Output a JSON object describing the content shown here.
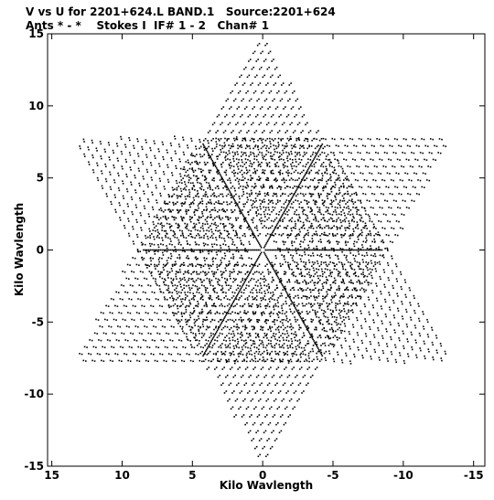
{
  "header": {
    "line1": "V vs U for 2201+624.L BAND.1   Source:2201+624",
    "line2": "Ants * - *    Stokes I  IF# 1 - 2   Chan# 1"
  },
  "chart_data": {
    "type": "scatter",
    "title": "V vs U for 2201+624.L BAND.1   Source:2201+624",
    "subtitle": "Ants * - *    Stokes I  IF# 1 - 2   Chan# 1",
    "xlabel": "Kilo Wavlength",
    "ylabel": "Kilo Wavlength",
    "xlim": [
      15.3,
      -15.8
    ],
    "ylim": [
      -15,
      15
    ],
    "x_ticks": [
      15,
      10,
      5,
      0,
      -5,
      -10,
      -15
    ],
    "x_tick_labels": [
      "15",
      "10",
      "5",
      "0",
      "-5",
      "-10",
      "-15"
    ],
    "y_ticks": [
      15,
      10,
      5,
      0,
      -5,
      -10,
      -15
    ],
    "y_tick_labels": [
      "15",
      "10",
      "5",
      "0",
      "-5",
      "-10",
      "-15"
    ],
    "grid": false,
    "marker_color": "#000000",
    "description_of_points": "uv-coverage: six-armed (Y-array) star of short arc tracks; arms radiate along angles 0, 60, 120, 180, 240, 300 degrees, each with a dense central spoke",
    "arms": [
      {
        "angle_deg": 90,
        "reach": 14.3
      },
      {
        "angle_deg": 210,
        "reach": 14.9
      },
      {
        "angle_deg": 330,
        "reach": 14.9
      },
      {
        "angle_deg": 270,
        "reach": 14.3
      },
      {
        "angle_deg": 30,
        "reach": 14.9
      },
      {
        "angle_deg": 150,
        "reach": 14.9
      }
    ],
    "spokes": [
      {
        "angle_deg": 0,
        "reach": 8.5
      },
      {
        "angle_deg": 120,
        "reach": 8.5
      },
      {
        "angle_deg": 240,
        "reach": 8.5
      },
      {
        "angle_deg": 180,
        "reach": 8.5
      },
      {
        "angle_deg": 300,
        "reach": 8.5
      },
      {
        "angle_deg": 60,
        "reach": 8.5
      }
    ]
  }
}
